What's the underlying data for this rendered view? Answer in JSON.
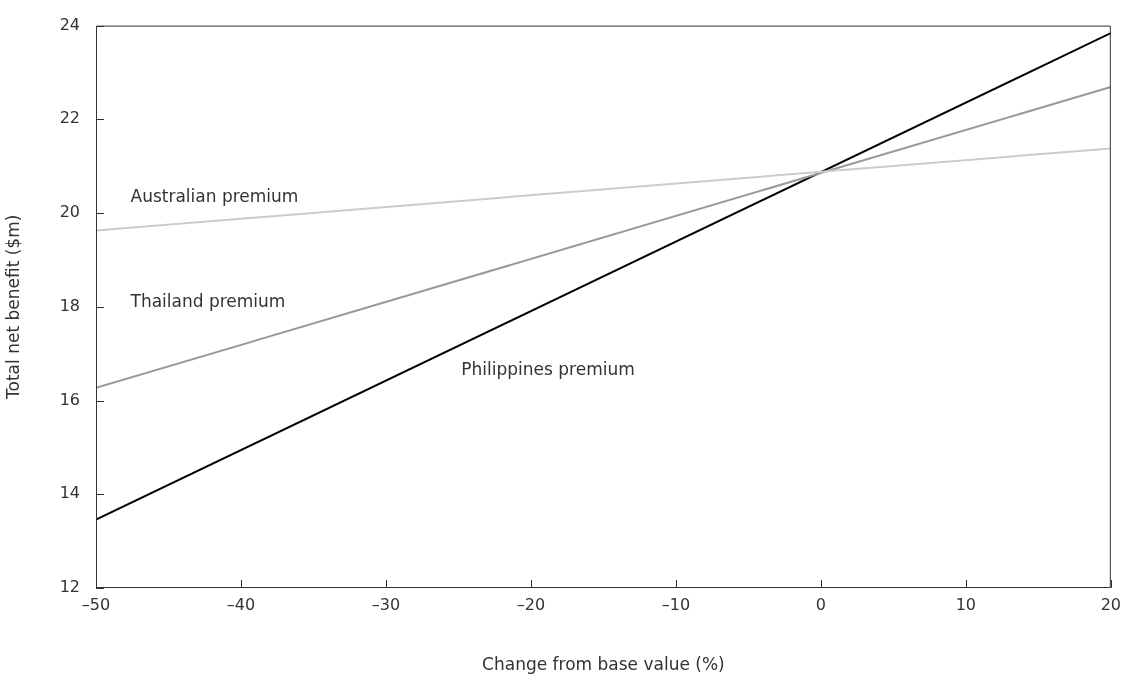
{
  "chart_data": {
    "type": "line",
    "xlabel": "Change from base value (%)",
    "ylabel": "Total net benefit ($m)",
    "xlim": [
      -50,
      20
    ],
    "xticks": [
      {
        "value": -50,
        "label": "–50"
      },
      {
        "value": -40,
        "label": "–40"
      },
      {
        "value": -30,
        "label": "–30"
      },
      {
        "value": -20,
        "label": "–20"
      },
      {
        "value": -10,
        "label": "–10"
      },
      0,
      10,
      20
    ],
    "ylim": [
      12,
      24
    ],
    "yticks": [
      12,
      14,
      16,
      18,
      20,
      22,
      24
    ],
    "grid": false,
    "legend": false,
    "marker": "none",
    "line_style": "solid",
    "x": [
      -50,
      20
    ],
    "series": [
      {
        "name": "Australian premium",
        "color": "#cccccc",
        "values": [
          19.63,
          21.38
        ]
      },
      {
        "name": "Thailand premium",
        "color": "#999999",
        "values": [
          16.27,
          22.69
        ]
      },
      {
        "name": "Philippines premium",
        "color": "#000000",
        "values": [
          13.46,
          23.84
        ]
      }
    ]
  }
}
